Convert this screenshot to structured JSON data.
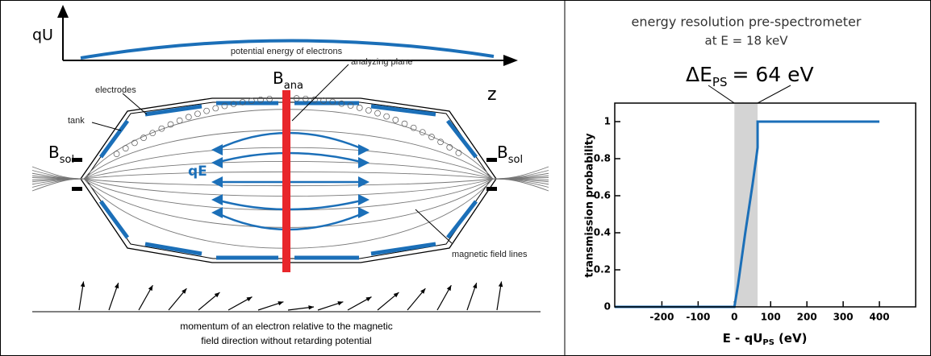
{
  "diagram": {
    "y_axis": "qU",
    "x_axis": "z",
    "potential_label": "potential energy of electrons",
    "b_ana": {
      "base": "B",
      "sub": "ana"
    },
    "analyzing_plane": "analyzing plane",
    "electrodes": "electrodes",
    "tank": "tank",
    "b_sol_left": {
      "base": "B",
      "sub": "sol"
    },
    "b_sol_right": {
      "base": "B",
      "sub": "sol"
    },
    "field": "qE",
    "field_lines": "magnetic field lines",
    "caption": [
      "momentum of an electron relative to the magnetic",
      "field direction without retarding potential"
    ]
  },
  "chart_data": {
    "type": "line",
    "title": "energy resolution pre-spectrometer",
    "subtitle": "at E = 18 keV",
    "annotation": {
      "base": "ΔE",
      "sub": "PS",
      "rest": "= 64 eV"
    },
    "shaded_region": [
      0,
      64
    ],
    "x_label": {
      "base": "E - qU",
      "sub": "PS",
      "rest": "(eV)"
    },
    "y_label": "transmission probability",
    "x": [
      -330,
      0,
      10,
      20,
      30,
      40,
      50,
      60,
      64,
      64,
      400
    ],
    "values": [
      0,
      0,
      0.12,
      0.26,
      0.4,
      0.53,
      0.66,
      0.8,
      0.86,
      1,
      1
    ],
    "color": "#1b6fb8",
    "xlim": [
      -330,
      500
    ],
    "ylim": [
      0,
      1.1
    ],
    "xticks": [
      -200,
      -100,
      0,
      100,
      200,
      300,
      400
    ],
    "yticks": [
      0,
      0.2,
      0.4,
      0.6,
      0.8,
      1
    ]
  }
}
